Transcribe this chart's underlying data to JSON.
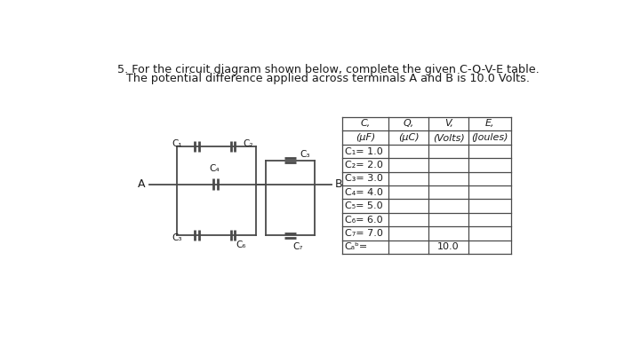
{
  "title_line1": "5. For the circuit diagram shown below, complete the given C-Q-V-E table.",
  "title_line2": "The potential difference applied across terminals A and B is 10.0 Volts.",
  "bg_color": "#ffffff",
  "table_col_headers_line1": [
    "C,",
    "Q,",
    "V,",
    "E,"
  ],
  "table_col_headers_line2": [
    "(μF)",
    "(μC)",
    "(Volts)",
    "(Joules)"
  ],
  "table_rows": [
    [
      "C₁= 1.0",
      "",
      "",
      ""
    ],
    [
      "C₂= 2.0",
      "",
      "",
      ""
    ],
    [
      "C₃= 3.0",
      "",
      "",
      ""
    ],
    [
      "C₄= 4.0",
      "",
      "",
      ""
    ],
    [
      "C₅= 5.0",
      "",
      "",
      ""
    ],
    [
      "C₆= 6.0",
      "",
      "",
      ""
    ],
    [
      "C₇= 7.0",
      "",
      "",
      ""
    ],
    [
      "Cₐᵇ=",
      "",
      "10.0",
      ""
    ]
  ],
  "text_color": "#1a1a1a",
  "wire_color": "#4a4a4a",
  "table_border_color": "#4a4a4a",
  "font_size_title": 9.2,
  "font_size_table": 8.0,
  "font_size_circuit": 7.5,
  "lw_wire": 1.3,
  "lw_table": 0.9,
  "lw_cap": 2.0
}
